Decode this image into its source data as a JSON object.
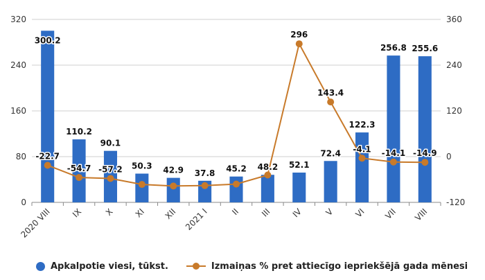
{
  "chart_data": {
    "type": "bar",
    "categories": [
      "2020 VIII",
      "IX",
      "X",
      "XI",
      "XII",
      "2021 I",
      "II",
      "III",
      "IV",
      "V",
      "VI",
      "VII",
      "VIII"
    ],
    "left_axis": {
      "min": 0,
      "max": 320,
      "ticks": [
        0,
        80,
        160,
        240,
        320
      ]
    },
    "right_axis": {
      "min": -120,
      "max": 360,
      "ticks": [
        -120,
        0,
        120,
        240,
        360
      ]
    },
    "grid": "horizontal",
    "legend_position": "bottom",
    "series": [
      {
        "name": "Apkalpotie viesi, tūkst.",
        "type": "bar",
        "axis": "left",
        "color": "#2e6cc4",
        "values": [
          300.2,
          110.2,
          90.1,
          50.3,
          42.9,
          37.8,
          45.2,
          48.2,
          52.1,
          72.4,
          122.3,
          256.8,
          255.6
        ],
        "labels": [
          "300.2",
          "110.2",
          "90.1",
          "50.3",
          "42.9",
          "37.8",
          "45.2",
          "48.2",
          "52.1",
          "72.4",
          "122.3",
          "256.8",
          "255.6"
        ]
      },
      {
        "name": "Izmaiņas % pret attiecīgo iepriekšējā gada mēnesi",
        "type": "line",
        "axis": "right",
        "color": "#c87a2a",
        "values": [
          -22.7,
          -54.7,
          -57.2,
          -73.0,
          -77.0,
          -76.0,
          -72.0,
          -48.2,
          296,
          143.4,
          -4.1,
          -14.1,
          -14.9
        ],
        "labels": [
          "-22.7",
          "-54.7",
          "-57.2",
          "",
          "",
          "",
          "",
          "",
          "296",
          "143.4",
          "-4.1",
          "-14.1",
          "-14.9"
        ]
      }
    ]
  }
}
